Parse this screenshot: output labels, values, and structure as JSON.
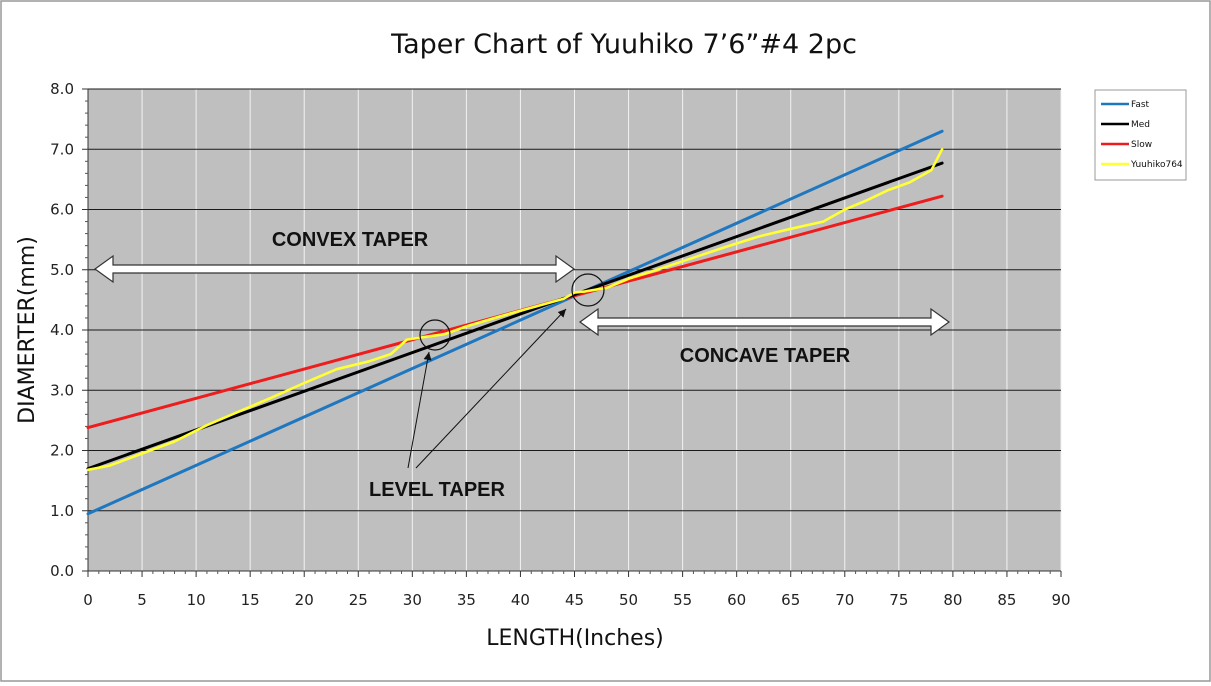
{
  "chart_data": {
    "type": "line",
    "title": "Taper Chart of Yuuhiko 7’6”#4 2pc",
    "xlabel": "LENGTH(Inches)",
    "ylabel": "DIAMERTER(mm)",
    "xlim": [
      0,
      90
    ],
    "ylim": [
      0,
      8
    ],
    "x_ticks": [
      "0",
      "5",
      "10",
      "15",
      "20",
      "25",
      "30",
      "35",
      "40",
      "45",
      "50",
      "55",
      "60",
      "65",
      "70",
      "75",
      "80",
      "85",
      "90"
    ],
    "y_ticks": [
      "0.0",
      "1.0",
      "2.0",
      "3.0",
      "4.0",
      "5.0",
      "6.0",
      "7.0",
      "8.0"
    ],
    "grid": true,
    "legend_position": "right",
    "series": [
      {
        "name": "Fast",
        "color": "#1f77c0",
        "x": [
          0,
          79
        ],
        "y": [
          0.95,
          7.3
        ]
      },
      {
        "name": "Med",
        "color": "#000000",
        "x": [
          0,
          79
        ],
        "y": [
          1.7,
          6.77
        ]
      },
      {
        "name": "Slow",
        "color": "#ee1c1c",
        "x": [
          0,
          79
        ],
        "y": [
          2.38,
          6.22
        ]
      },
      {
        "name": "Yuuhiko764",
        "color": "#ffff33",
        "x": [
          0,
          2,
          5,
          8,
          11,
          14,
          17,
          20,
          23,
          26,
          28,
          29.5,
          31,
          33,
          35,
          38,
          41,
          44,
          45,
          46,
          48,
          50,
          53,
          56,
          59,
          62,
          65,
          68,
          70,
          72,
          74,
          76,
          78,
          79
        ],
        "y": [
          1.68,
          1.75,
          1.95,
          2.15,
          2.42,
          2.65,
          2.88,
          3.12,
          3.35,
          3.48,
          3.6,
          3.84,
          3.88,
          3.93,
          4.06,
          4.22,
          4.37,
          4.52,
          4.62,
          4.64,
          4.7,
          4.85,
          5.02,
          5.2,
          5.38,
          5.55,
          5.68,
          5.8,
          6.0,
          6.15,
          6.32,
          6.45,
          6.65,
          7.0
        ]
      }
    ],
    "annotations": {
      "convex": "CONVEX TAPER",
      "concave": "CONCAVE TAPER",
      "level": "LEVEL TAPER"
    }
  }
}
